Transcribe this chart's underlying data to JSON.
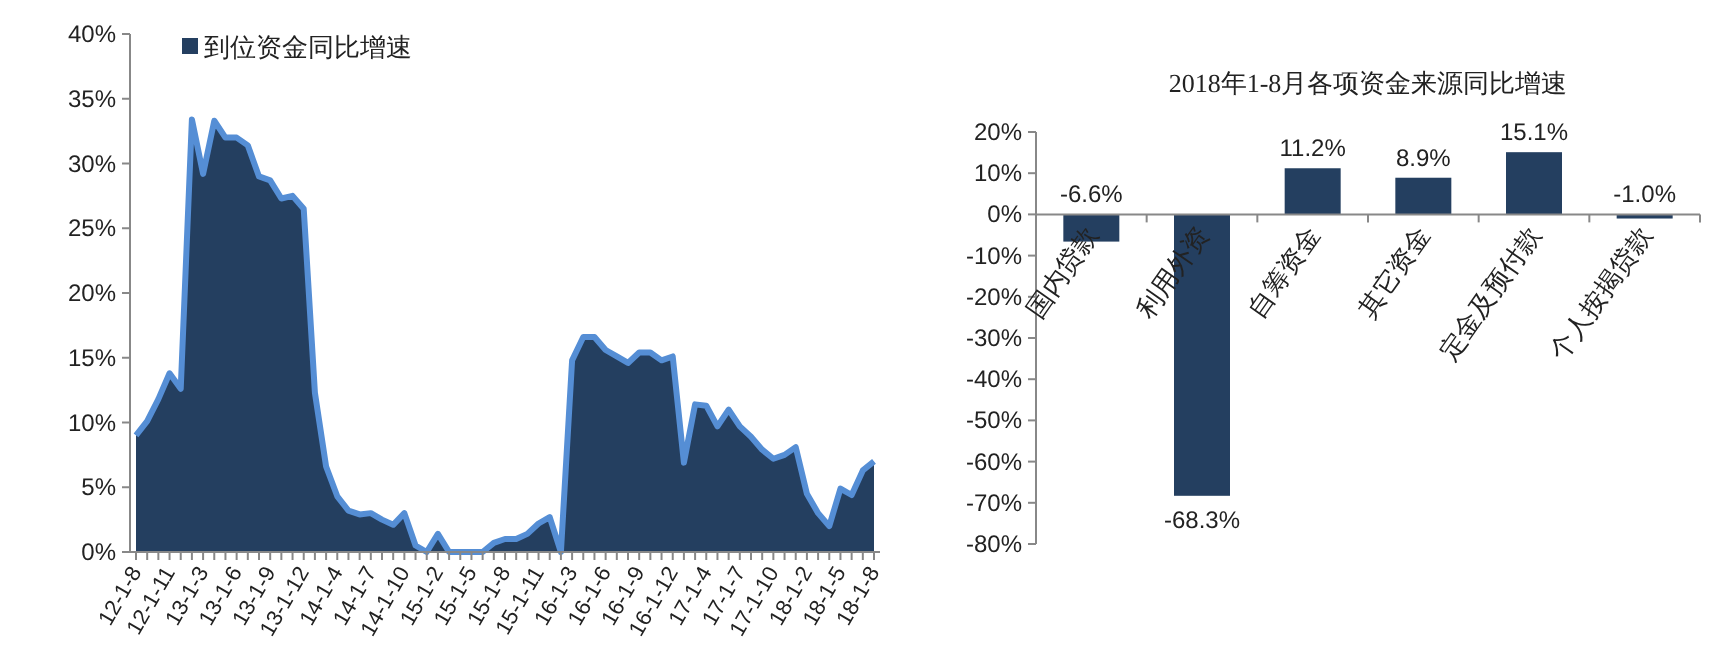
{
  "chart_data": [
    {
      "type": "area",
      "categories": [
        "12-1-8",
        null,
        null,
        "12-1-11",
        null,
        null,
        "13-1-3",
        null,
        null,
        "13-1-6",
        null,
        null,
        "13-1-9",
        null,
        null,
        "13-1-12",
        null,
        null,
        "14-1-4",
        null,
        null,
        "14-1-7",
        null,
        null,
        "14-1-10",
        null,
        null,
        "15-1-2",
        null,
        null,
        "15-1-5",
        null,
        null,
        "15-1-8",
        null,
        null,
        "15-1-11",
        null,
        null,
        "16-1-3",
        null,
        null,
        "16-1-6",
        null,
        null,
        "16-1-9",
        null,
        null,
        "16-1-12",
        null,
        null,
        "17-1-4",
        null,
        null,
        "17-1-7",
        null,
        null,
        "17-1-10",
        null,
        null,
        "18-1-2",
        null,
        null,
        "18-1-5",
        null,
        null,
        "18-1-8"
      ],
      "series": [
        {
          "name": "到位资金同比增速",
          "color": "#243f60",
          "values": [
            9.0,
            10.1,
            11.8,
            13.8,
            12.6,
            33.4,
            29.2,
            33.3,
            32.0,
            32.0,
            31.4,
            29.0,
            28.7,
            27.3,
            27.5,
            26.5,
            12.3,
            6.6,
            4.3,
            3.2,
            2.9,
            3.0,
            2.5,
            2.1,
            3.0,
            0.5,
            0,
            1.4,
            0,
            0,
            0,
            0,
            0.7,
            1.0,
            1.0,
            1.4,
            2.2,
            2.7,
            0,
            14.8,
            16.6,
            16.6,
            15.6,
            15.1,
            14.6,
            15.4,
            15.4,
            14.8,
            15.1,
            6.9,
            11.4,
            11.3,
            9.7,
            11.0,
            9.7,
            8.9,
            7.9,
            7.2,
            7.5,
            8.1,
            4.5,
            3.0,
            2.0,
            4.9,
            4.4,
            6.3,
            7.0
          ]
        }
      ],
      "ylim": [
        0,
        40
      ],
      "yticks": [
        {
          "value": 0,
          "label": "0%"
        },
        {
          "value": 5,
          "label": "5%"
        },
        {
          "value": 10,
          "label": "10%"
        },
        {
          "value": 15,
          "label": "15%"
        },
        {
          "value": 20,
          "label": "20%"
        },
        {
          "value": 25,
          "label": "25%"
        },
        {
          "value": 30,
          "label": "30%"
        },
        {
          "value": 35,
          "label": "35%"
        },
        {
          "value": 40,
          "label": "40%"
        }
      ],
      "legend": "top left"
    },
    {
      "type": "bar",
      "title": "2018年1-8月各项资金来源同比增速",
      "categories": [
        "国内贷款",
        "利用外资",
        "自筹资金",
        "其它资金",
        "定金及预付款",
        "个人按揭贷款"
      ],
      "values": [
        -6.6,
        -68.3,
        11.2,
        8.9,
        15.1,
        -1.0
      ],
      "value_labels": [
        "-6.6%",
        "-68.3%",
        "11.2%",
        "8.9%",
        "15.1%",
        "-1.0%"
      ],
      "color": "#243f60",
      "ylim": [
        -80,
        20
      ],
      "yticks": [
        {
          "value": 20,
          "label": "20%"
        },
        {
          "value": 10,
          "label": "10%"
        },
        {
          "value": 0,
          "label": "0%"
        },
        {
          "value": -10,
          "label": "-10%"
        },
        {
          "value": -20,
          "label": "-20%"
        },
        {
          "value": -30,
          "label": "-30%"
        },
        {
          "value": -40,
          "label": "-40%"
        },
        {
          "value": -50,
          "label": "-50%"
        },
        {
          "value": -60,
          "label": "-60%"
        },
        {
          "value": -70,
          "label": "-70%"
        },
        {
          "value": -80,
          "label": "-80%"
        }
      ]
    }
  ]
}
